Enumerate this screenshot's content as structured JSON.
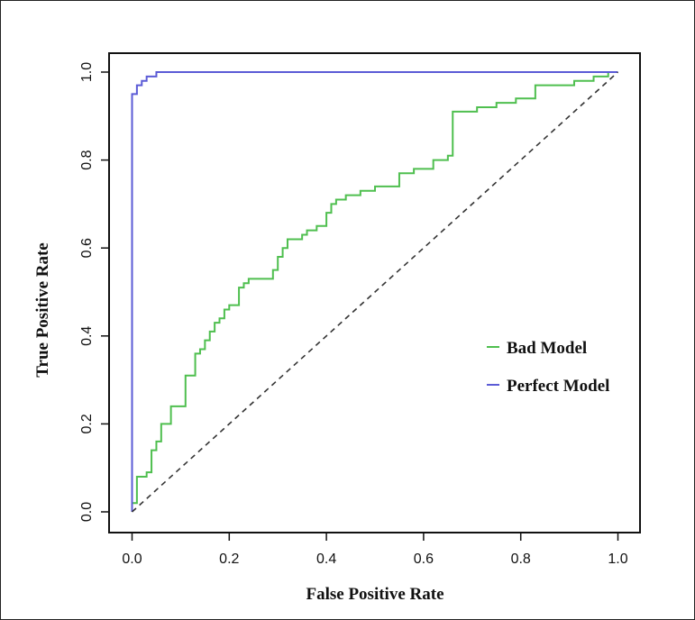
{
  "chart_data": {
    "type": "line",
    "title": "",
    "xlabel": "False Positive Rate",
    "ylabel": "True Positive Rate",
    "xlim": [
      0,
      1
    ],
    "ylim": [
      0,
      1
    ],
    "x_ticks": [
      "0.0",
      "0.2",
      "0.4",
      "0.6",
      "0.8",
      "1.0"
    ],
    "y_ticks": [
      "0.0",
      "0.2",
      "0.4",
      "0.6",
      "0.8",
      "1.0"
    ],
    "grid": false,
    "legend_position": "right",
    "series": [
      {
        "name": "Bad Model",
        "color": "#4fbf4f",
        "style": "solid",
        "points": [
          [
            0.0,
            0.0
          ],
          [
            0.0,
            0.02
          ],
          [
            0.01,
            0.02
          ],
          [
            0.01,
            0.08
          ],
          [
            0.03,
            0.08
          ],
          [
            0.03,
            0.09
          ],
          [
            0.04,
            0.09
          ],
          [
            0.04,
            0.14
          ],
          [
            0.05,
            0.14
          ],
          [
            0.05,
            0.16
          ],
          [
            0.06,
            0.16
          ],
          [
            0.06,
            0.2
          ],
          [
            0.08,
            0.2
          ],
          [
            0.08,
            0.24
          ],
          [
            0.11,
            0.24
          ],
          [
            0.11,
            0.31
          ],
          [
            0.13,
            0.31
          ],
          [
            0.13,
            0.36
          ],
          [
            0.14,
            0.36
          ],
          [
            0.14,
            0.37
          ],
          [
            0.15,
            0.37
          ],
          [
            0.15,
            0.39
          ],
          [
            0.16,
            0.39
          ],
          [
            0.16,
            0.41
          ],
          [
            0.17,
            0.41
          ],
          [
            0.17,
            0.43
          ],
          [
            0.18,
            0.43
          ],
          [
            0.18,
            0.44
          ],
          [
            0.19,
            0.44
          ],
          [
            0.19,
            0.46
          ],
          [
            0.2,
            0.46
          ],
          [
            0.2,
            0.47
          ],
          [
            0.22,
            0.47
          ],
          [
            0.22,
            0.51
          ],
          [
            0.23,
            0.51
          ],
          [
            0.23,
            0.52
          ],
          [
            0.24,
            0.52
          ],
          [
            0.24,
            0.53
          ],
          [
            0.29,
            0.53
          ],
          [
            0.29,
            0.55
          ],
          [
            0.3,
            0.55
          ],
          [
            0.3,
            0.58
          ],
          [
            0.31,
            0.58
          ],
          [
            0.31,
            0.6
          ],
          [
            0.32,
            0.6
          ],
          [
            0.32,
            0.62
          ],
          [
            0.35,
            0.62
          ],
          [
            0.35,
            0.63
          ],
          [
            0.36,
            0.63
          ],
          [
            0.36,
            0.64
          ],
          [
            0.38,
            0.64
          ],
          [
            0.38,
            0.65
          ],
          [
            0.4,
            0.65
          ],
          [
            0.4,
            0.68
          ],
          [
            0.41,
            0.68
          ],
          [
            0.41,
            0.7
          ],
          [
            0.42,
            0.7
          ],
          [
            0.42,
            0.71
          ],
          [
            0.44,
            0.71
          ],
          [
            0.44,
            0.72
          ],
          [
            0.47,
            0.72
          ],
          [
            0.47,
            0.73
          ],
          [
            0.5,
            0.73
          ],
          [
            0.5,
            0.74
          ],
          [
            0.55,
            0.74
          ],
          [
            0.55,
            0.77
          ],
          [
            0.58,
            0.77
          ],
          [
            0.58,
            0.78
          ],
          [
            0.62,
            0.78
          ],
          [
            0.62,
            0.8
          ],
          [
            0.65,
            0.8
          ],
          [
            0.65,
            0.81
          ],
          [
            0.66,
            0.81
          ],
          [
            0.66,
            0.91
          ],
          [
            0.71,
            0.91
          ],
          [
            0.71,
            0.92
          ],
          [
            0.75,
            0.92
          ],
          [
            0.75,
            0.93
          ],
          [
            0.79,
            0.93
          ],
          [
            0.79,
            0.94
          ],
          [
            0.83,
            0.94
          ],
          [
            0.83,
            0.97
          ],
          [
            0.91,
            0.97
          ],
          [
            0.91,
            0.98
          ],
          [
            0.95,
            0.98
          ],
          [
            0.95,
            0.99
          ],
          [
            0.98,
            0.99
          ],
          [
            0.98,
            1.0
          ],
          [
            1.0,
            1.0
          ]
        ]
      },
      {
        "name": "Perfect Model",
        "color": "#5b5bd6",
        "style": "solid",
        "points": [
          [
            0.0,
            0.0
          ],
          [
            0.0,
            0.95
          ],
          [
            0.01,
            0.95
          ],
          [
            0.01,
            0.97
          ],
          [
            0.02,
            0.97
          ],
          [
            0.02,
            0.98
          ],
          [
            0.03,
            0.98
          ],
          [
            0.03,
            0.99
          ],
          [
            0.05,
            0.99
          ],
          [
            0.05,
            1.0
          ],
          [
            1.0,
            1.0
          ]
        ]
      },
      {
        "name": "",
        "color": "#333333",
        "style": "dashed",
        "points": [
          [
            0.0,
            0.0
          ],
          [
            1.0,
            1.0
          ]
        ]
      }
    ]
  }
}
